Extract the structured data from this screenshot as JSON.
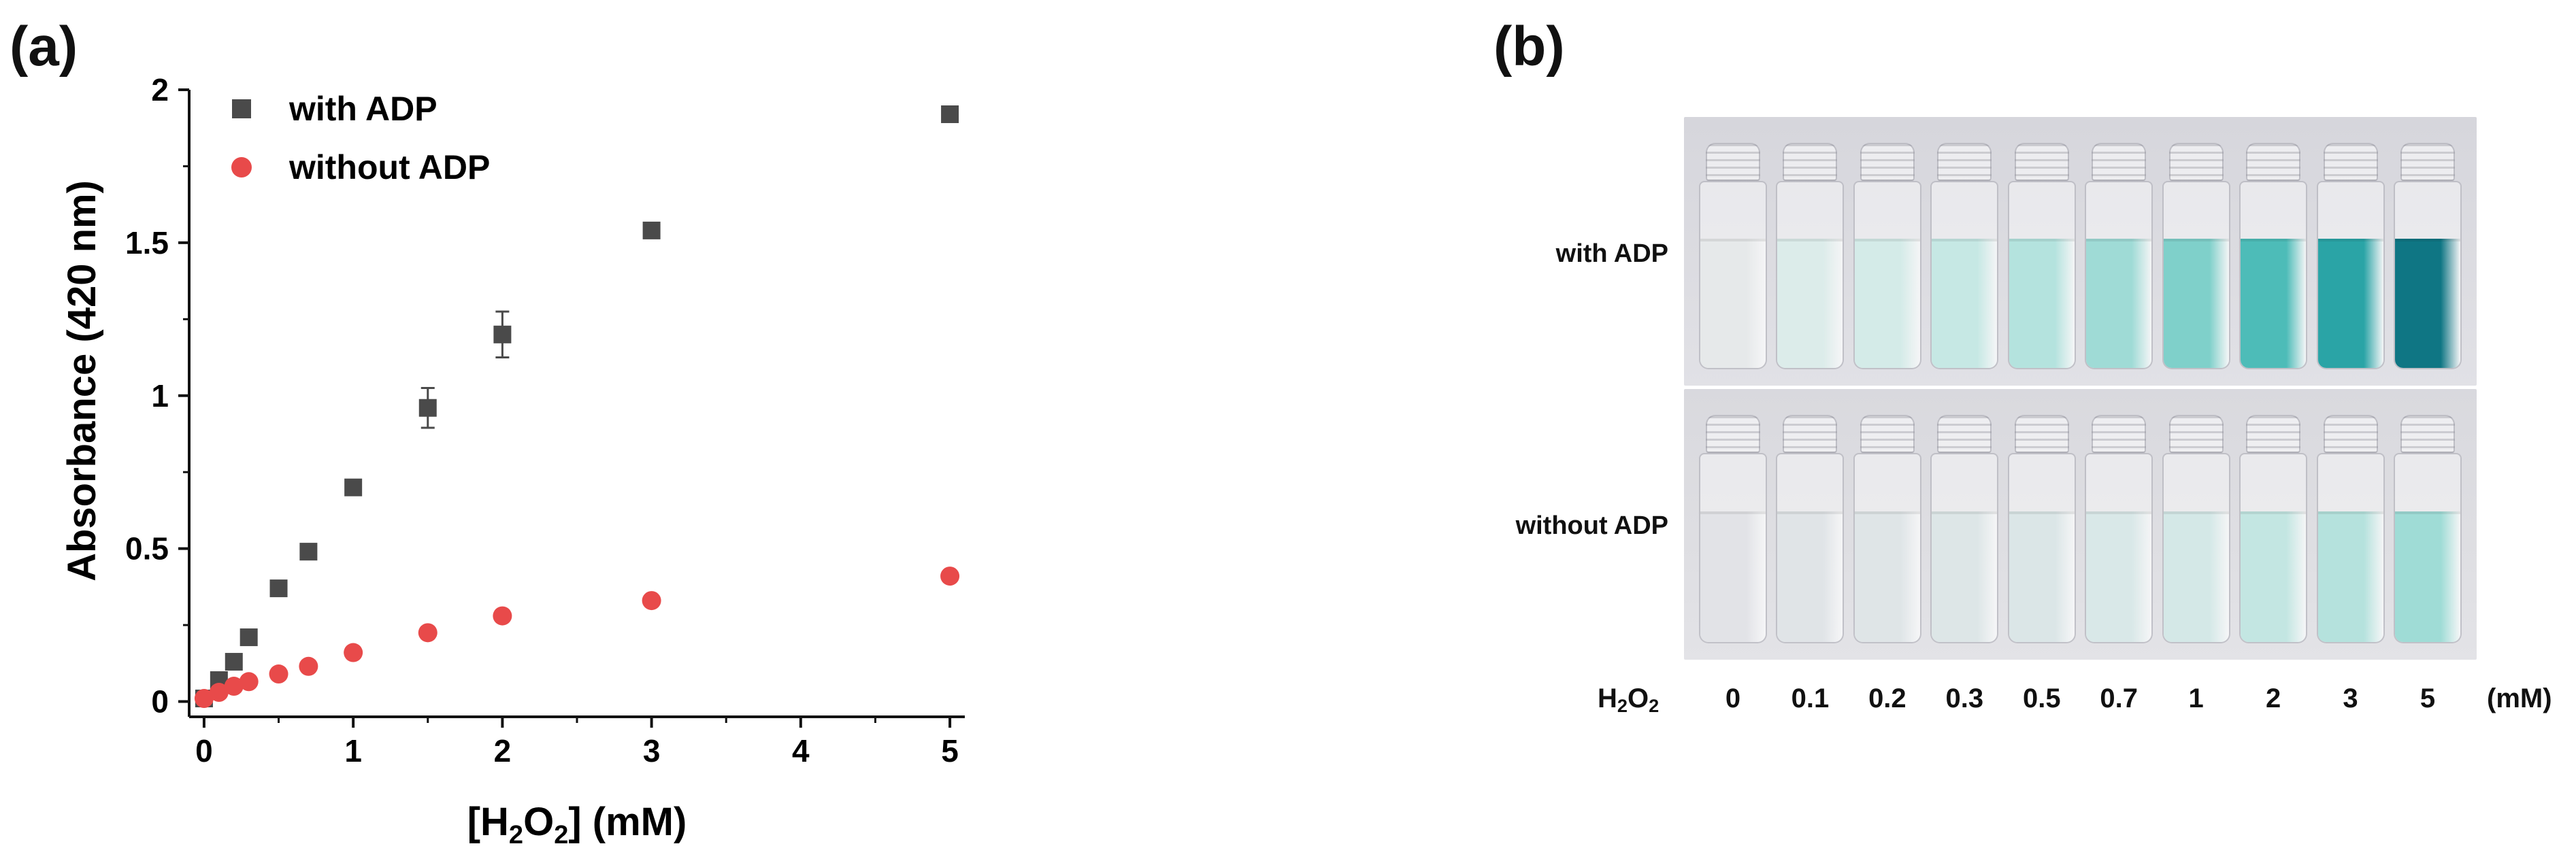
{
  "panel_a_label": "(a)",
  "panel_b_label": "(b)",
  "chart_data": {
    "type": "scatter",
    "xlabel_parts": [
      "[H",
      "2",
      "O",
      "2",
      "] (mM)"
    ],
    "ylabel": "Absorbance (420 nm)",
    "xlim": [
      -0.1,
      5.1
    ],
    "ylim": [
      -0.05,
      2.0
    ],
    "xticks": [
      0,
      1,
      2,
      3,
      4,
      5
    ],
    "yticks": [
      0,
      0.5,
      1,
      1.5,
      2
    ],
    "ytick_labels": [
      "0",
      "0.5",
      "1",
      "1.5",
      "2"
    ],
    "legend_position": "top-left",
    "series": [
      {
        "name": "with ADP",
        "color": "#4a4a4a",
        "marker": "square",
        "x": [
          0,
          0.1,
          0.2,
          0.3,
          0.5,
          0.7,
          1,
          1.5,
          2,
          3,
          5
        ],
        "y": [
          0.01,
          0.07,
          0.13,
          0.21,
          0.37,
          0.49,
          0.7,
          0.96,
          1.2,
          1.54,
          1.92
        ],
        "error": [
          0.005,
          0.005,
          0.005,
          0.005,
          0.005,
          0.01,
          0.025,
          0.065,
          0.075,
          0.01,
          0.02
        ]
      },
      {
        "name": "without ADP",
        "color": "#e84a4a",
        "marker": "circle",
        "x": [
          0,
          0.1,
          0.2,
          0.3,
          0.5,
          0.7,
          1,
          1.5,
          2,
          3,
          5
        ],
        "y": [
          0.01,
          0.03,
          0.05,
          0.065,
          0.09,
          0.115,
          0.16,
          0.225,
          0.28,
          0.33,
          0.41
        ],
        "error": [
          0.003,
          0.003,
          0.003,
          0.003,
          0.004,
          0.004,
          0.005,
          0.006,
          0.008,
          0.008,
          0.01
        ]
      }
    ]
  },
  "photo": {
    "row_labels": [
      "with ADP",
      "without ADP"
    ],
    "h2o2_label_parts": [
      "H",
      "2",
      "O",
      "2"
    ],
    "concentrations": [
      "0",
      "0.1",
      "0.2",
      "0.3",
      "0.5",
      "0.7",
      "1",
      "2",
      "3",
      "5"
    ],
    "unit": "(mM)",
    "liquid_colors_with_adp": [
      "#e6e9ea",
      "#dcecea",
      "#d4ebe8",
      "#c6e8e4",
      "#b4e3de",
      "#9fdbd6",
      "#7fd0ca",
      "#4dbcb8",
      "#2aa4a6",
      "#0f7684"
    ],
    "liquid_colors_without_adp": [
      "#e2e3e7",
      "#e0e4e7",
      "#dfe5e7",
      "#dde6e7",
      "#dbe6e7",
      "#d9e8e8",
      "#d4e8e7",
      "#c3e6e2",
      "#b5e2dd",
      "#9fdcd6"
    ]
  }
}
